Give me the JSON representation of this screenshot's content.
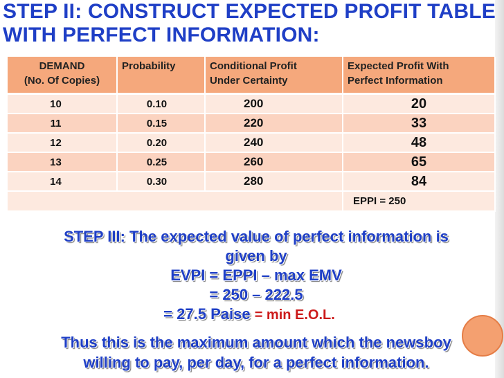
{
  "slide": {
    "title_line1": "STEP II: CONSTRUCT EXPECTED PROFIT TABLE",
    "title_line2": "WITH PERFECT INFORMATION:"
  },
  "table": {
    "headers": {
      "demand": [
        "DEMAND",
        "(No. Of  Copies)"
      ],
      "probability": "Probability",
      "conditional_profit": [
        "Conditional Profit",
        "Under Certainty"
      ],
      "expected_profit": [
        "Expected Profit With",
        "Perfect Information"
      ]
    },
    "rows": [
      {
        "demand": "10",
        "probability": "0.10",
        "conditional_profit": "200",
        "expected_profit": "20"
      },
      {
        "demand": "11",
        "probability": "0.15",
        "conditional_profit": "220",
        "expected_profit": "33"
      },
      {
        "demand": "12",
        "probability": "0.20",
        "conditional_profit": "240",
        "expected_profit": "48"
      },
      {
        "demand": "13",
        "probability": "0.25",
        "conditional_profit": "260",
        "expected_profit": "65"
      },
      {
        "demand": "14",
        "probability": "0.30",
        "conditional_profit": "280",
        "expected_profit": "84"
      }
    ],
    "eppi": "EPPI = 250"
  },
  "step3": {
    "line1": "STEP III: The expected value of perfect information is",
    "line2": "given by",
    "line3": "EVPI = EPPI – max EMV",
    "line4": "= 250 – 222.5",
    "line5": "= 27.5 Paise",
    "line5_note": "= min E.O.L."
  },
  "conclusion": {
    "line1": "Thus this is the maximum amount which the newsboy",
    "line2": "willing to pay, per day, for a perfect information."
  },
  "colors": {
    "title": "#1f3fc6",
    "header_fill": "#f5a87c",
    "row_light": "#fde9df",
    "row_dark": "#fbd3c0",
    "highlight_text": "#cc1a1a",
    "accent_circle": "#f4a070"
  }
}
